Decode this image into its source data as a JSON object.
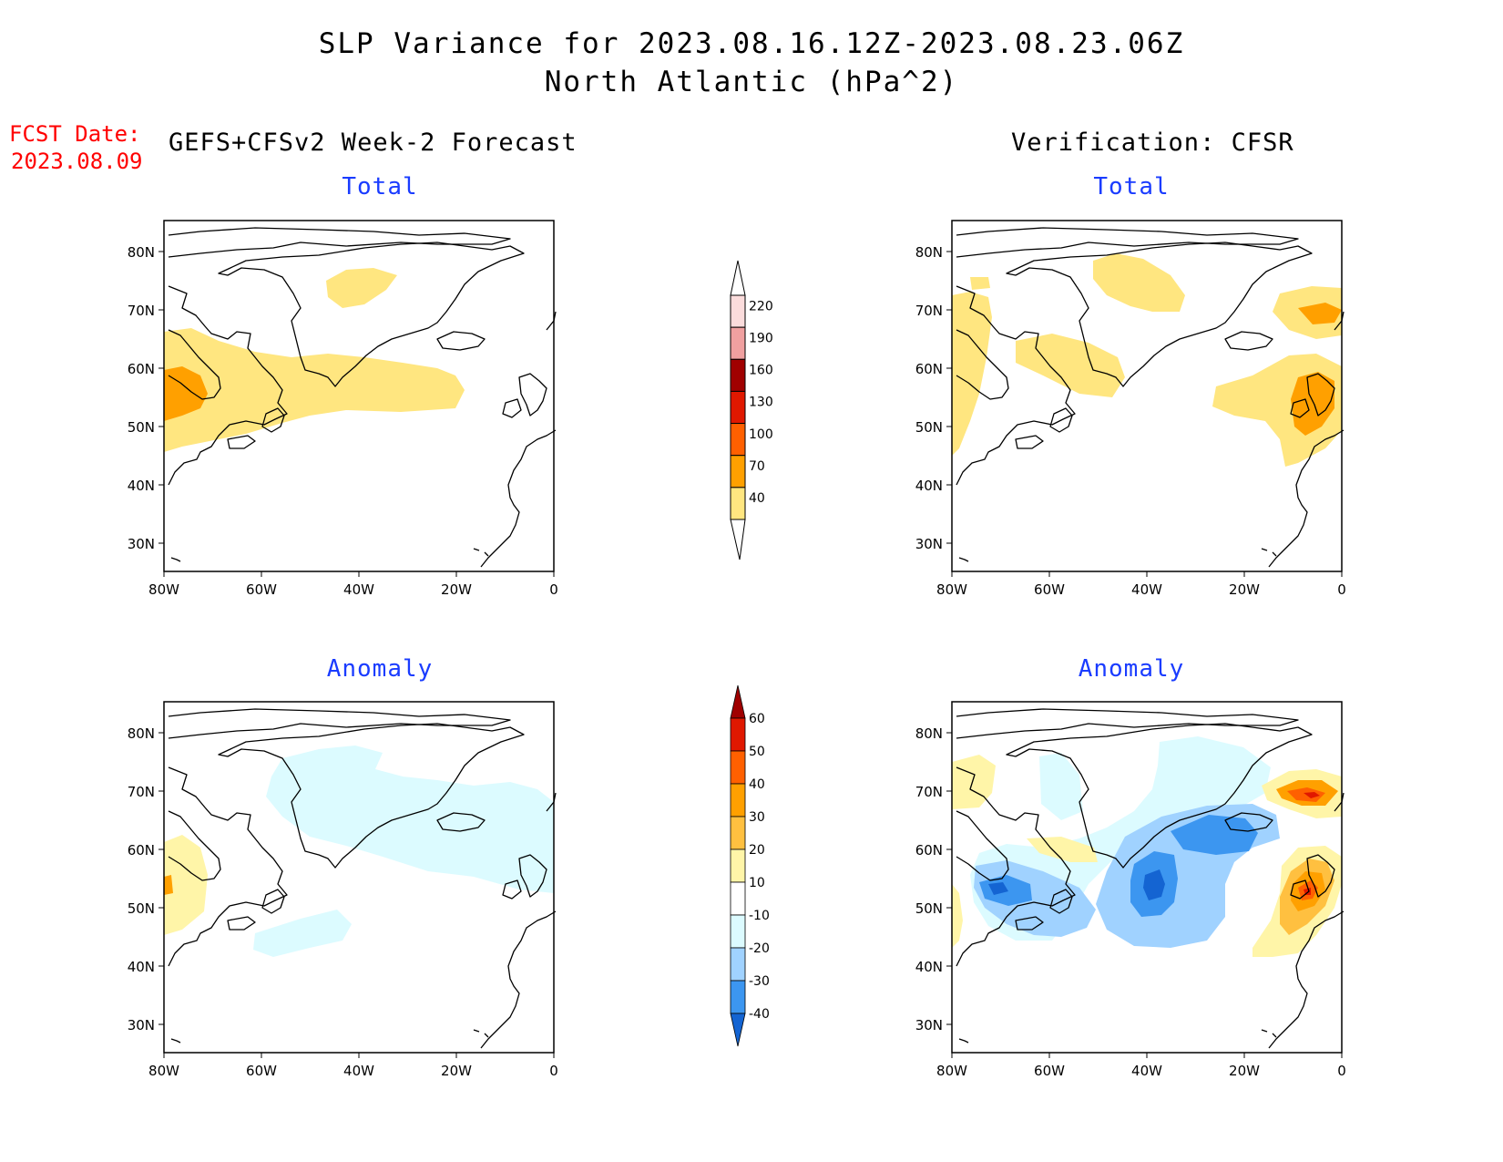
{
  "title": {
    "line1": "SLP Variance for 2023.08.16.12Z-2023.08.23.06Z",
    "line2": "North Atlantic (hPa^2)"
  },
  "forecast_date": {
    "label": "FCST Date:",
    "value": "2023.08.09"
  },
  "columns": {
    "left": "GEFS+CFSv2 Week-2 Forecast",
    "right": "Verification: CFSR"
  },
  "panels": {
    "fc_total": {
      "title": "Total"
    },
    "vf_total": {
      "title": "Total"
    },
    "fc_anom": {
      "title": "Anomaly"
    },
    "vf_anom": {
      "title": "Anomaly"
    }
  },
  "axes": {
    "lat_labels": [
      "80N",
      "70N",
      "60N",
      "50N",
      "40N",
      "30N"
    ],
    "lon_labels": [
      "80W",
      "60W",
      "40W",
      "20W",
      "0"
    ]
  },
  "colorbars": {
    "total": {
      "levels": [
        "220",
        "190",
        "160",
        "130",
        "100",
        "70",
        "40"
      ],
      "colors": [
        "#fbdcdc",
        "#f0a0a0",
        "#a00000",
        "#e01800",
        "#ff6000",
        "#ffa000",
        "#ffe680"
      ]
    },
    "anomaly": {
      "levels": [
        "60",
        "50",
        "40",
        "30",
        "20",
        "10",
        "-10",
        "-20",
        "-30",
        "-40"
      ],
      "colors": [
        "#a00000",
        "#e01800",
        "#ff6000",
        "#ffa000",
        "#ffc040",
        "#fff5a8",
        "#ffffff",
        "#dcfbff",
        "#a0d2ff",
        "#3c96f0",
        "#1464d2"
      ]
    }
  },
  "colors": {
    "fcst_date": "#ff0000",
    "panel_title": "#1a3cff"
  }
}
